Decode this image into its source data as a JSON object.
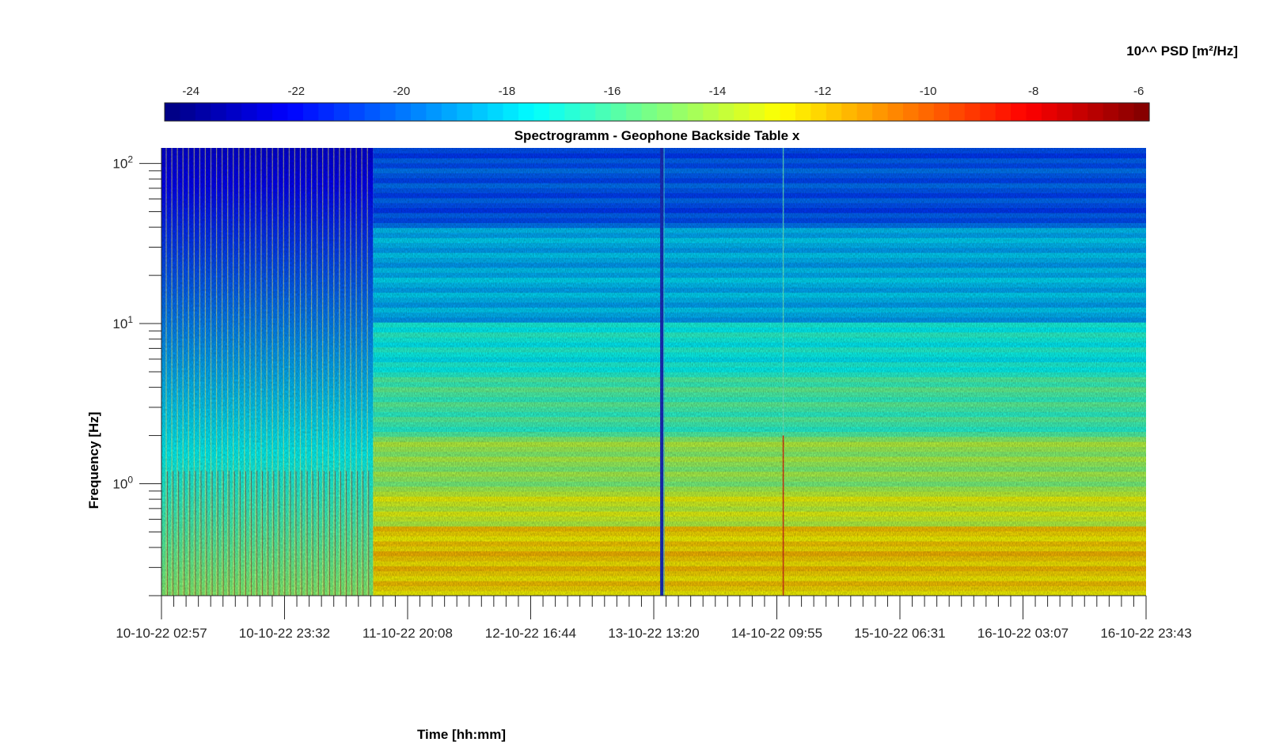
{
  "chart_data": {
    "type": "heatmap",
    "title": "Spectrogramm - Geophone Backside Table x",
    "xlabel": "Time [hh:mm]",
    "ylabel": "Frequency [Hz]",
    "colorbar": {
      "label": "10^^ PSD [m²/Hz]",
      "range": [
        -24.5,
        -5.8
      ],
      "ticks": [
        -24,
        -22,
        -20,
        -18,
        -16,
        -14,
        -12,
        -10,
        -8,
        -6
      ],
      "colormap": "jet",
      "placement": "top"
    },
    "x_ticks": [
      "10-10-22 02:57",
      "10-10-22 23:32",
      "11-10-22 20:08",
      "12-10-22 16:44",
      "13-10-22 13:20",
      "14-10-22 09:55",
      "15-10-22 06:31",
      "16-10-22 03:07",
      "16-10-22 23:43"
    ],
    "x_range": [
      "10-10-22 02:57",
      "16-10-22 23:43"
    ],
    "y_scale": "log",
    "y_range": [
      0.2,
      125
    ],
    "y_ticks": [
      {
        "value": 1,
        "base": "10",
        "exp": "0"
      },
      {
        "value": 10,
        "base": "10",
        "exp": "1"
      },
      {
        "value": 100,
        "base": "10",
        "exp": "2"
      }
    ],
    "bands": [
      {
        "f_max": 0.55,
        "level": -12.2
      },
      {
        "f_max": 0.9,
        "level": -13.6
      },
      {
        "f_max": 2.0,
        "level": -14.6
      },
      {
        "f_max": 5.0,
        "level": -16.2
      },
      {
        "f_max": 10,
        "level": -17.3
      },
      {
        "f_max": 40,
        "level": -18.6
      },
      {
        "f_max": 125,
        "level": -20.5
      }
    ],
    "early_period": {
      "end": "11-10-22 14:21",
      "level_at_100Hz": -22.5,
      "level_at_0.2Hz": -15.0
    },
    "events": [
      {
        "time": "13-10-22 14:40",
        "type": "gap"
      },
      {
        "time": "14-10-22 11:00",
        "type": "spike"
      }
    ],
    "grid": false
  }
}
